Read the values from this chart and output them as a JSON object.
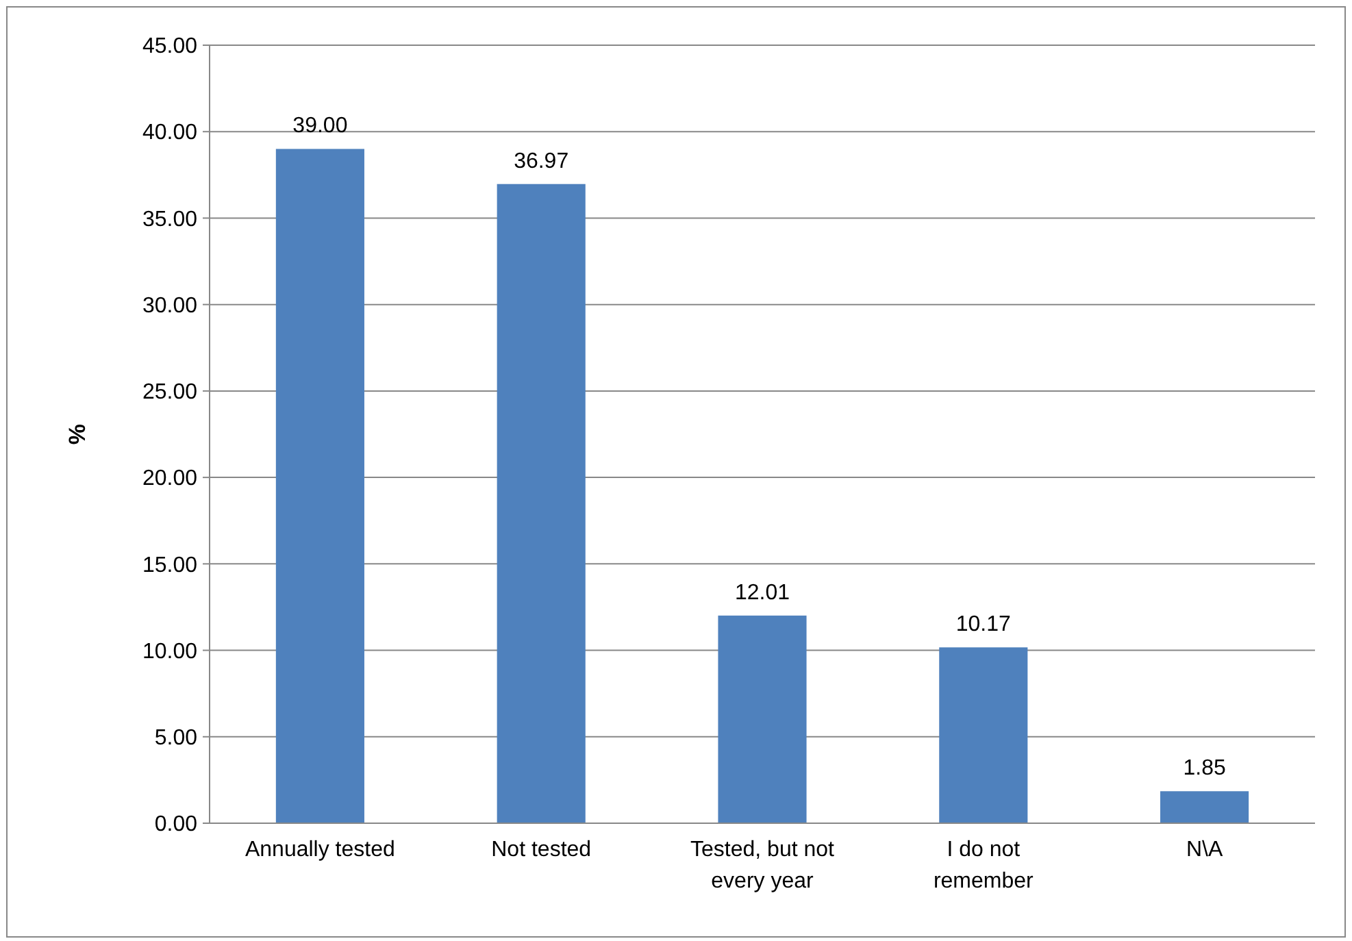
{
  "chart_data": {
    "type": "bar",
    "ylabel": "%",
    "categories": [
      "Annually tested",
      "Not tested",
      "Tested, but not every year",
      "I do not remember",
      "N\\A"
    ],
    "values": [
      39.0,
      36.97,
      12.01,
      10.17,
      1.85
    ],
    "value_labels": [
      "39.00",
      "36.97",
      "12.01",
      "10.17",
      "1.85"
    ],
    "color": "#4f81bd",
    "ylim": [
      0,
      45
    ],
    "yticks": [
      {
        "value": 0,
        "label": "0.00"
      },
      {
        "value": 5,
        "label": "5.00"
      },
      {
        "value": 10,
        "label": "10.00"
      },
      {
        "value": 15,
        "label": "15.00"
      },
      {
        "value": 20,
        "label": "20.00"
      },
      {
        "value": 25,
        "label": "25.00"
      },
      {
        "value": 30,
        "label": "30.00"
      },
      {
        "value": 35,
        "label": "35.00"
      },
      {
        "value": 40,
        "label": "40.00"
      },
      {
        "value": 45,
        "label": "45.00"
      }
    ],
    "grid": "y"
  }
}
